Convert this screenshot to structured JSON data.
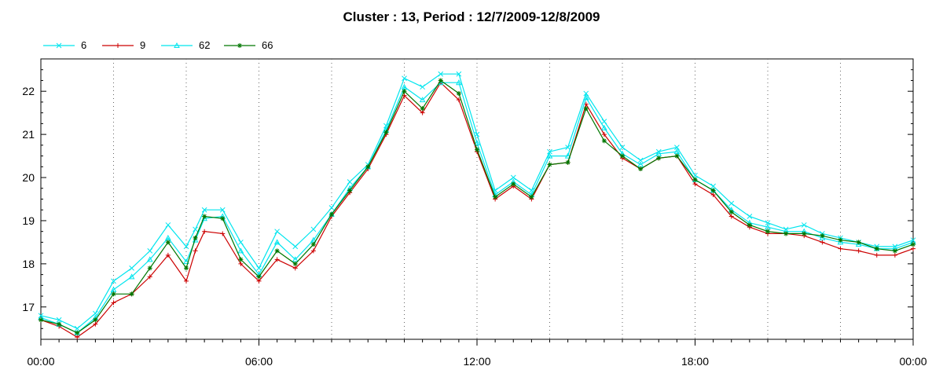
{
  "chart_data": {
    "type": "line",
    "title": "Cluster : 13, Period : 12/7/2009-12/8/2009",
    "xlabel": "",
    "ylabel": "",
    "x_ticks": [
      "00:00",
      "06:00",
      "12:00",
      "18:00",
      "00:00"
    ],
    "x_range_hours": [
      0,
      24
    ],
    "y_ticks": [
      "17",
      "18",
      "19",
      "20",
      "21",
      "22"
    ],
    "ylim": [
      16.25,
      22.75
    ],
    "grid": "vertical dotted lines every 2 hours",
    "legend_position": "top-left",
    "x": [
      0,
      0.5,
      1,
      1.5,
      2,
      2.5,
      3,
      3.5,
      4,
      4.25,
      4.5,
      5,
      5.5,
      6,
      6.5,
      7,
      7.5,
      8,
      8.5,
      9,
      9.5,
      10,
      10.5,
      11,
      11.5,
      12,
      12.5,
      13,
      13.5,
      14,
      14.5,
      15,
      15.5,
      16,
      16.5,
      17,
      17.5,
      18,
      18.5,
      19,
      19.5,
      20,
      20.5,
      21,
      21.5,
      22,
      22.5,
      23,
      23.5,
      24
    ],
    "series": [
      {
        "name": "6",
        "color": "#00e5ee",
        "marker": "x",
        "values": [
          16.8,
          16.7,
          16.5,
          16.85,
          17.6,
          17.9,
          18.3,
          18.9,
          18.4,
          18.8,
          19.25,
          19.25,
          18.5,
          17.9,
          18.75,
          18.4,
          18.8,
          19.3,
          19.9,
          20.3,
          21.2,
          22.3,
          22.1,
          22.4,
          22.4,
          21.0,
          19.7,
          20.0,
          19.7,
          20.6,
          20.7,
          21.95,
          21.3,
          20.7,
          20.4,
          20.6,
          20.7,
          20.05,
          19.8,
          19.4,
          19.1,
          18.95,
          18.8,
          18.9,
          18.7,
          18.6,
          18.5,
          18.4,
          18.4,
          18.55
        ]
      },
      {
        "name": "9",
        "color": "#cc0000",
        "marker": "+",
        "values": [
          16.7,
          16.55,
          16.3,
          16.6,
          17.1,
          17.3,
          17.7,
          18.2,
          17.6,
          18.3,
          18.75,
          18.7,
          18.0,
          17.6,
          18.1,
          17.9,
          18.3,
          19.1,
          19.65,
          20.2,
          21.0,
          21.9,
          21.5,
          22.2,
          21.8,
          20.6,
          19.5,
          19.8,
          19.5,
          20.3,
          20.35,
          21.7,
          21.0,
          20.45,
          20.2,
          20.45,
          20.5,
          19.85,
          19.6,
          19.1,
          18.85,
          18.7,
          18.7,
          18.65,
          18.5,
          18.35,
          18.3,
          18.2,
          18.2,
          18.35
        ]
      },
      {
        "name": "62",
        "color": "#00e5ee",
        "marker": "triangle",
        "values": [
          16.75,
          16.6,
          16.4,
          16.75,
          17.4,
          17.7,
          18.1,
          18.6,
          18.05,
          18.55,
          19.05,
          19.1,
          18.3,
          17.75,
          18.5,
          18.1,
          18.55,
          19.15,
          19.75,
          20.25,
          21.1,
          22.1,
          21.8,
          22.2,
          22.2,
          20.8,
          19.6,
          19.9,
          19.6,
          20.5,
          20.5,
          21.85,
          21.15,
          20.55,
          20.3,
          20.55,
          20.6,
          19.95,
          19.7,
          19.25,
          18.95,
          18.85,
          18.75,
          18.75,
          18.6,
          18.5,
          18.45,
          18.35,
          18.35,
          18.5
        ]
      },
      {
        "name": "66",
        "color": "#007700",
        "marker": "*",
        "values": [
          16.7,
          16.6,
          16.4,
          16.7,
          17.3,
          17.3,
          17.9,
          18.5,
          17.9,
          18.6,
          19.1,
          19.05,
          18.1,
          17.7,
          18.3,
          18.0,
          18.45,
          19.15,
          19.7,
          20.25,
          21.05,
          22.0,
          21.6,
          22.25,
          21.95,
          20.65,
          19.55,
          19.85,
          19.55,
          20.3,
          20.35,
          21.6,
          20.85,
          20.5,
          20.2,
          20.45,
          20.5,
          19.95,
          19.7,
          19.2,
          18.9,
          18.75,
          18.7,
          18.7,
          18.65,
          18.55,
          18.5,
          18.35,
          18.3,
          18.45
        ]
      }
    ]
  }
}
